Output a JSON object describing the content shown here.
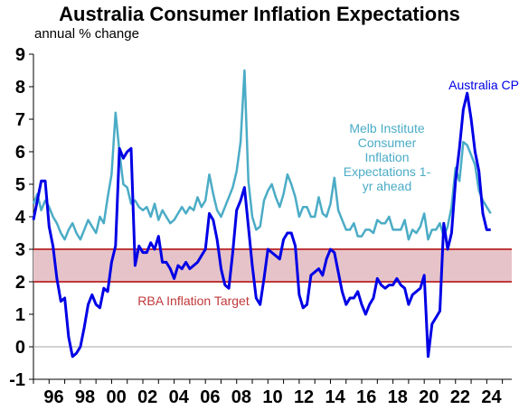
{
  "chart_data": {
    "type": "line",
    "title": "Australia Consumer Inflation Expectations",
    "subtitle": "annual % change",
    "ylim": [
      -1,
      9
    ],
    "xlim": [
      1995.0,
      2025.6
    ],
    "y_ticks": [
      "9",
      "8",
      "7",
      "6",
      "5",
      "4",
      "3",
      "2",
      "1",
      "0",
      "-1"
    ],
    "x_ticks": [
      "96",
      "98",
      "00",
      "02",
      "04",
      "06",
      "08",
      "10",
      "12",
      "14",
      "16",
      "18",
      "20",
      "22",
      "24"
    ],
    "grid": false,
    "colors": {
      "melb": "#4bacc6",
      "cpi": "#0000e6",
      "target_band": "#e6c3c8",
      "target_line": "#c0393b",
      "zero_line": "#a6a6a6"
    },
    "target_band": {
      "low": 2,
      "high": 3,
      "label": "RBA Inflation Target"
    },
    "series": [
      {
        "name": "Australia CPI",
        "x": [
          1995.0,
          1995.25,
          1995.5,
          1995.75,
          1996.0,
          1996.25,
          1996.5,
          1996.75,
          1997.0,
          1997.25,
          1997.5,
          1997.75,
          1998.0,
          1998.25,
          1998.5,
          1998.75,
          1999.0,
          1999.25,
          1999.5,
          1999.75,
          2000.0,
          2000.25,
          2000.5,
          2000.75,
          2001.0,
          2001.25,
          2001.5,
          2001.75,
          2002.0,
          2002.25,
          2002.5,
          2002.75,
          2003.0,
          2003.25,
          2003.5,
          2003.75,
          2004.0,
          2004.25,
          2004.5,
          2004.75,
          2005.0,
          2005.25,
          2005.5,
          2005.75,
          2006.0,
          2006.25,
          2006.5,
          2006.75,
          2007.0,
          2007.25,
          2007.5,
          2007.75,
          2008.0,
          2008.25,
          2008.5,
          2008.75,
          2009.0,
          2009.25,
          2009.5,
          2009.75,
          2010.0,
          2010.25,
          2010.5,
          2010.75,
          2011.0,
          2011.25,
          2011.5,
          2011.75,
          2012.0,
          2012.25,
          2012.5,
          2012.75,
          2013.0,
          2013.25,
          2013.5,
          2013.75,
          2014.0,
          2014.25,
          2014.5,
          2014.75,
          2015.0,
          2015.25,
          2015.5,
          2015.75,
          2016.0,
          2016.25,
          2016.5,
          2016.75,
          2017.0,
          2017.25,
          2017.5,
          2017.75,
          2018.0,
          2018.25,
          2018.5,
          2018.75,
          2019.0,
          2019.25,
          2019.5,
          2019.75,
          2020.0,
          2020.25,
          2020.5,
          2020.75,
          2021.0,
          2021.25,
          2021.5,
          2021.75,
          2022.0,
          2022.25,
          2022.5,
          2022.75,
          2023.0,
          2023.25,
          2023.5,
          2023.75,
          2024.0,
          2024.25
        ],
        "values": [
          3.9,
          4.5,
          5.1,
          5.1,
          3.7,
          3.1,
          2.1,
          1.4,
          1.5,
          0.3,
          -0.3,
          -0.2,
          0.0,
          0.6,
          1.3,
          1.6,
          1.3,
          1.2,
          1.8,
          1.7,
          2.6,
          3.1,
          6.1,
          5.8,
          6.0,
          6.1,
          2.5,
          3.1,
          2.9,
          2.9,
          3.2,
          3.0,
          3.4,
          2.6,
          2.6,
          2.4,
          2.1,
          2.5,
          2.4,
          2.6,
          2.4,
          2.5,
          2.6,
          2.8,
          3.0,
          4.1,
          3.9,
          3.3,
          2.4,
          1.9,
          1.8,
          2.9,
          4.2,
          4.5,
          4.9,
          3.7,
          2.5,
          1.5,
          1.3,
          2.1,
          3.0,
          2.9,
          2.8,
          2.7,
          3.3,
          3.5,
          3.5,
          3.1,
          1.6,
          1.2,
          1.3,
          2.2,
          2.3,
          2.4,
          2.2,
          2.7,
          3.0,
          2.9,
          2.3,
          1.7,
          1.3,
          1.5,
          1.5,
          1.7,
          1.3,
          1.0,
          1.3,
          1.5,
          2.1,
          1.9,
          1.8,
          1.9,
          1.9,
          2.1,
          1.9,
          1.8,
          1.3,
          1.6,
          1.7,
          1.8,
          2.2,
          -0.3,
          0.7,
          0.9,
          1.1,
          3.8,
          3.0,
          3.5,
          5.1,
          6.1,
          7.3,
          7.8,
          7.0,
          6.0,
          5.4,
          4.1,
          3.6,
          3.6
        ]
      },
      {
        "name": "Melb Institute Consumer Inflation Expectations 1-yr ahead",
        "x": [
          1995.0,
          1995.25,
          1995.5,
          1995.75,
          1996.0,
          1996.25,
          1996.5,
          1996.75,
          1997.0,
          1997.25,
          1997.5,
          1997.75,
          1998.0,
          1998.25,
          1998.5,
          1998.75,
          1999.0,
          1999.25,
          1999.5,
          1999.75,
          2000.0,
          2000.25,
          2000.5,
          2000.75,
          2001.0,
          2001.25,
          2001.5,
          2001.75,
          2002.0,
          2002.25,
          2002.5,
          2002.75,
          2003.0,
          2003.25,
          2003.5,
          2003.75,
          2004.0,
          2004.25,
          2004.5,
          2004.75,
          2005.0,
          2005.25,
          2005.5,
          2005.75,
          2006.0,
          2006.25,
          2006.5,
          2006.75,
          2007.0,
          2007.25,
          2007.5,
          2007.75,
          2008.0,
          2008.25,
          2008.5,
          2008.75,
          2009.0,
          2009.25,
          2009.5,
          2009.75,
          2010.0,
          2010.25,
          2010.5,
          2010.75,
          2011.0,
          2011.25,
          2011.5,
          2011.75,
          2012.0,
          2012.25,
          2012.5,
          2012.75,
          2013.0,
          2013.25,
          2013.5,
          2013.75,
          2014.0,
          2014.25,
          2014.5,
          2014.75,
          2015.0,
          2015.25,
          2015.5,
          2015.75,
          2016.0,
          2016.25,
          2016.5,
          2016.75,
          2017.0,
          2017.25,
          2017.5,
          2017.75,
          2018.0,
          2018.25,
          2018.5,
          2018.75,
          2019.0,
          2019.25,
          2019.5,
          2019.75,
          2020.0,
          2020.25,
          2020.5,
          2020.75,
          2021.0,
          2021.25,
          2021.5,
          2021.75,
          2022.0,
          2022.25,
          2022.5,
          2022.75,
          2023.0,
          2023.25,
          2023.5,
          2023.75,
          2024.0,
          2024.25
        ],
        "values": [
          4.4,
          4.7,
          4.2,
          4.5,
          4.3,
          4.0,
          3.8,
          3.5,
          3.3,
          3.6,
          3.8,
          3.5,
          3.3,
          3.6,
          3.9,
          3.7,
          3.5,
          4.0,
          3.8,
          4.6,
          5.3,
          7.2,
          6.0,
          5.0,
          4.9,
          4.4,
          4.5,
          4.3,
          4.2,
          4.3,
          4.0,
          4.4,
          3.9,
          4.2,
          4.0,
          3.8,
          3.9,
          4.1,
          4.3,
          4.1,
          4.3,
          4.2,
          4.6,
          4.3,
          4.5,
          5.3,
          4.7,
          4.2,
          4.0,
          4.3,
          4.6,
          4.9,
          5.4,
          6.3,
          8.5,
          5.1,
          4.0,
          3.6,
          3.7,
          4.5,
          4.8,
          5.0,
          4.6,
          4.3,
          4.7,
          5.3,
          5.0,
          4.6,
          4.0,
          4.3,
          4.3,
          4.0,
          4.0,
          4.6,
          4.1,
          4.0,
          4.4,
          5.2,
          4.2,
          3.9,
          3.6,
          3.6,
          3.8,
          3.4,
          3.4,
          3.6,
          3.6,
          3.5,
          3.9,
          3.8,
          3.8,
          4.0,
          3.6,
          3.6,
          3.6,
          3.9,
          3.3,
          3.6,
          3.5,
          3.7,
          4.1,
          3.3,
          3.6,
          3.6,
          3.8,
          3.4,
          3.7,
          4.3,
          5.5,
          5.1,
          6.3,
          6.2,
          5.9,
          5.6,
          4.8,
          4.5,
          4.3,
          4.1
        ]
      }
    ],
    "annotations": {
      "cpi_label": "Australia CPI",
      "melb_label_lines": [
        "Melb Institute",
        "Consumer",
        "Inflation",
        "Expectations 1-",
        "yr ahead"
      ],
      "target_label": "RBA Inflation Target"
    }
  }
}
